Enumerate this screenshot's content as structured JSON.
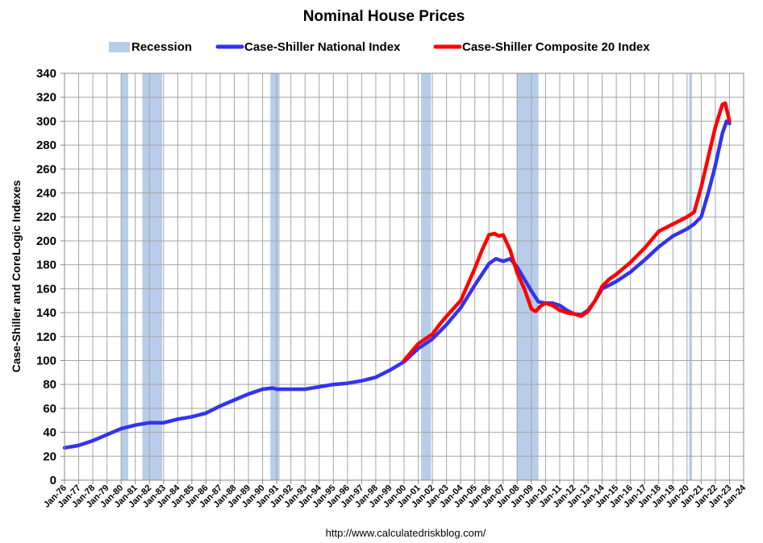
{
  "chart_data": {
    "type": "line",
    "title": "Nominal House Prices",
    "ylabel": "Case-Shiller and CoreLogic Indexes",
    "xlabel": "",
    "source": "http://www.calculatedriskblog.com/",
    "ylim": [
      0,
      340
    ],
    "yticks": [
      0,
      20,
      40,
      60,
      80,
      100,
      120,
      140,
      160,
      180,
      200,
      220,
      240,
      260,
      280,
      300,
      320,
      340
    ],
    "xlim": [
      1976,
      2024
    ],
    "xticks": [
      "Jan-76",
      "Jan-77",
      "Jan-78",
      "Jan-79",
      "Jan-80",
      "Jan-81",
      "Jan-82",
      "Jan-83",
      "Jan-84",
      "Jan-85",
      "Jan-86",
      "Jan-87",
      "Jan-88",
      "Jan-89",
      "Jan-90",
      "Jan-91",
      "Jan-92",
      "Jan-93",
      "Jan-94",
      "Jan-95",
      "Jan-96",
      "Jan-97",
      "Jan-98",
      "Jan-99",
      "Jan-00",
      "Jan-01",
      "Jan-02",
      "Jan-03",
      "Jan-04",
      "Jan-05",
      "Jan-06",
      "Jan-07",
      "Jan-08",
      "Jan-09",
      "Jan-10",
      "Jan-11",
      "Jan-12",
      "Jan-13",
      "Jan-14",
      "Jan-15",
      "Jan-16",
      "Jan-17",
      "Jan-18",
      "Jan-19",
      "Jan-20",
      "Jan-21",
      "Jan-22",
      "Jan-23",
      "Jan-24"
    ],
    "grid": true,
    "legend_position": "top",
    "legend": [
      {
        "label": "Recession",
        "kind": "band",
        "color": "#b7cdea"
      },
      {
        "label": "Case-Shiller National Index",
        "kind": "line",
        "color": "#3333ee"
      },
      {
        "label": "Case-Shiller Composite 20 Index",
        "kind": "line",
        "color": "#ff0000"
      }
    ],
    "recessions": [
      {
        "start": 1980.0,
        "end": 1980.5
      },
      {
        "start": 1981.5,
        "end": 1982.9
      },
      {
        "start": 1990.55,
        "end": 1991.2
      },
      {
        "start": 2001.2,
        "end": 2001.9
      },
      {
        "start": 2007.95,
        "end": 2009.5
      },
      {
        "start": 2020.15,
        "end": 2020.35
      }
    ],
    "series": [
      {
        "name": "Case-Shiller National Index",
        "color": "#3333ee",
        "x": [
          1976.0,
          1977.0,
          1978.0,
          1979.0,
          1980.0,
          1981.0,
          1982.0,
          1983.0,
          1984.0,
          1985.0,
          1986.0,
          1987.0,
          1988.0,
          1989.0,
          1990.0,
          1990.7,
          1991.0,
          1992.0,
          1993.0,
          1994.0,
          1995.0,
          1996.0,
          1997.0,
          1998.0,
          1999.0,
          2000.0,
          2001.0,
          2002.0,
          2003.0,
          2004.0,
          2005.0,
          2006.0,
          2006.5,
          2007.0,
          2007.5,
          2008.0,
          2008.5,
          2009.0,
          2009.5,
          2010.0,
          2010.5,
          2011.0,
          2011.5,
          2012.0,
          2012.5,
          2013.0,
          2013.5,
          2014.0,
          2015.0,
          2016.0,
          2017.0,
          2018.0,
          2019.0,
          2020.0,
          2020.5,
          2021.0,
          2021.5,
          2022.0,
          2022.5,
          2022.8,
          2023.0
        ],
        "values": [
          27,
          29,
          33,
          38,
          43,
          46,
          48,
          48,
          51,
          53,
          56,
          62,
          67,
          72,
          76,
          77,
          76,
          76,
          76,
          78,
          80,
          81,
          83,
          86,
          92,
          99,
          110,
          118,
          130,
          144,
          163,
          181,
          185,
          183,
          185,
          178,
          168,
          158,
          149,
          148,
          148,
          146,
          142,
          139,
          138,
          142,
          150,
          160,
          166,
          174,
          184,
          195,
          204,
          210,
          214,
          220,
          240,
          263,
          290,
          300,
          298
        ]
      },
      {
        "name": "Case-Shiller Composite 20 Index",
        "color": "#ff0000",
        "x": [
          2000.0,
          2000.5,
          2001.0,
          2001.5,
          2002.0,
          2002.5,
          2003.0,
          2004.0,
          2005.0,
          2005.5,
          2006.0,
          2006.4,
          2006.7,
          2007.0,
          2007.5,
          2008.0,
          2008.5,
          2009.0,
          2009.3,
          2009.6,
          2010.0,
          2010.5,
          2011.0,
          2011.5,
          2012.0,
          2012.5,
          2013.0,
          2013.5,
          2014.0,
          2014.5,
          2015.0,
          2016.0,
          2017.0,
          2018.0,
          2019.0,
          2020.0,
          2020.5,
          2021.0,
          2021.5,
          2022.0,
          2022.5,
          2022.7,
          2022.9,
          2023.0
        ],
        "values": [
          100,
          107,
          114,
          118,
          122,
          130,
          137,
          150,
          177,
          192,
          205,
          206,
          204,
          205,
          192,
          173,
          160,
          143,
          141,
          145,
          148,
          146,
          142,
          140,
          139,
          137,
          141,
          150,
          162,
          168,
          172,
          182,
          194,
          208,
          214,
          220,
          224,
          245,
          270,
          295,
          314,
          315,
          305,
          300
        ]
      }
    ]
  }
}
